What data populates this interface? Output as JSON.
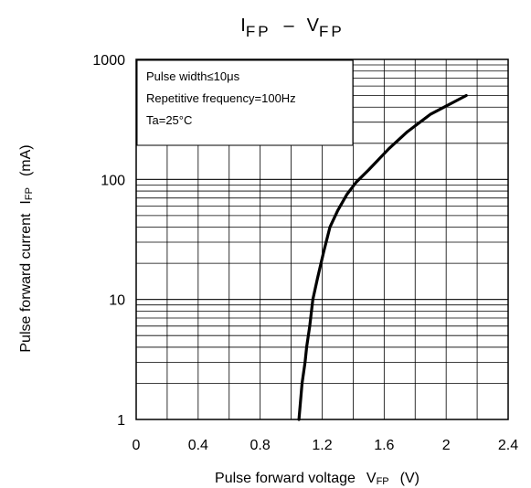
{
  "chart_data": {
    "type": "line",
    "title": {
      "main_a": "I",
      "sub_a": "FP",
      "sep": "–",
      "main_b": "V",
      "sub_b": "FP"
    },
    "xlabel": {
      "text": "Pulse forward voltage",
      "sym": "V",
      "sub": "FP",
      "unit": "(V)"
    },
    "ylabel": {
      "text": "Pulse forward current",
      "sym": "I",
      "sub": "FP",
      "unit": "(mA)"
    },
    "xlim": [
      0,
      2.4
    ],
    "ylim": [
      1,
      1000
    ],
    "y_scale": "log",
    "x_ticks": [
      0,
      0.2,
      0.4,
      0.6,
      0.8,
      1.0,
      1.2,
      1.4,
      1.6,
      1.8,
      2.0,
      2.2,
      2.4
    ],
    "x_tick_labels": [
      {
        "v": 0,
        "label": "0"
      },
      {
        "v": 0.4,
        "label": "0.4"
      },
      {
        "v": 0.8,
        "label": "0.8"
      },
      {
        "v": 1.2,
        "label": "1.2"
      },
      {
        "v": 1.6,
        "label": "1.6"
      },
      {
        "v": 2.0,
        "label": "2"
      },
      {
        "v": 2.4,
        "label": "2.4"
      }
    ],
    "y_tick_labels": [
      {
        "v": 1,
        "label": "1"
      },
      {
        "v": 10,
        "label": "10"
      },
      {
        "v": 100,
        "label": "100"
      },
      {
        "v": 1000,
        "label": "1000"
      }
    ],
    "grid": true,
    "annotation": {
      "placement": "top-left",
      "lines": [
        "Pulse width≤10μs",
        "Repetitive frequency=100Hz",
        "Ta=25°C"
      ]
    },
    "series": [
      {
        "x": [
          1.05,
          1.07,
          1.09,
          1.1,
          1.12,
          1.14,
          1.17,
          1.21,
          1.25,
          1.3,
          1.36,
          1.42,
          1.5,
          1.63,
          1.75,
          1.9,
          2.13
        ],
        "y": [
          1,
          2,
          3,
          4,
          6,
          10,
          15,
          25,
          40,
          55,
          75,
          95,
          120,
          180,
          250,
          350,
          500
        ]
      }
    ]
  }
}
